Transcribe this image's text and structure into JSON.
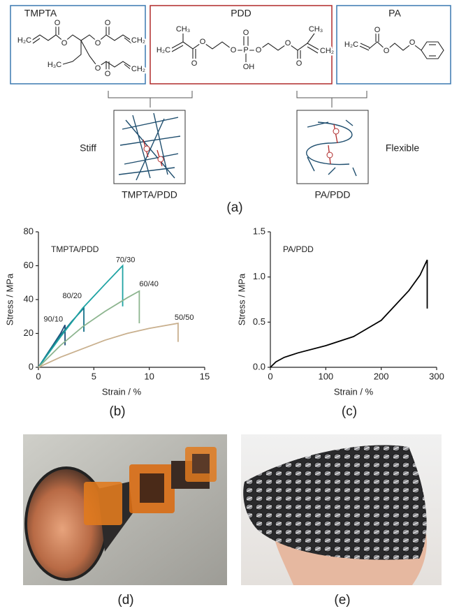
{
  "panel_a": {
    "monomers": [
      {
        "name": "TMPTA",
        "atoms": [
          "H₂C",
          "O",
          "O",
          "O",
          "O",
          "CH₂",
          "H₃C",
          "O",
          "O",
          "CH₂"
        ]
      },
      {
        "name": "PDD",
        "atoms": [
          "CH₃",
          "H₂C",
          "O",
          "O",
          "O",
          "P",
          "O",
          "OH",
          "O",
          "O",
          "O",
          "CH₃",
          "CH₂"
        ]
      },
      {
        "name": "PA",
        "atoms": [
          "H₂C",
          "O",
          "O",
          "O"
        ]
      }
    ],
    "networks": [
      {
        "name": "TMPTA/PDD",
        "property": "Stiff"
      },
      {
        "name": "PA/PDD",
        "property": "Flexible"
      }
    ],
    "label": "(a)"
  },
  "chart_data": [
    {
      "type": "line",
      "label": "(b)",
      "annotation": "TMPTA/PDD",
      "xlabel": "Strain / %",
      "ylabel": "Stress / MPa",
      "xlim": [
        0,
        15
      ],
      "xticks": [
        0,
        5,
        10,
        15
      ],
      "ylim": [
        0,
        80
      ],
      "yticks": [
        0,
        20,
        40,
        60,
        80
      ],
      "series": [
        {
          "name": "90/10",
          "color": "#1f4e79",
          "x": [
            0,
            1,
            2,
            2.4,
            2.4
          ],
          "values": [
            0,
            10,
            20,
            25,
            13
          ]
        },
        {
          "name": "80/20",
          "color": "#17728a",
          "x": [
            0,
            1,
            2,
            3,
            4.1,
            4.1
          ],
          "values": [
            0,
            10,
            19,
            27,
            35,
            21
          ]
        },
        {
          "name": "70/30",
          "color": "#1fa3a3",
          "x": [
            0,
            2,
            4,
            6,
            7.6,
            7.6
          ],
          "values": [
            0,
            18,
            35,
            49,
            60,
            36
          ]
        },
        {
          "name": "60/40",
          "color": "#8db58f",
          "x": [
            0,
            2,
            4,
            6,
            8,
            9.1,
            9.1
          ],
          "values": [
            0,
            13,
            24,
            33,
            41,
            45,
            26
          ]
        },
        {
          "name": "50/50",
          "color": "#c9b08e",
          "x": [
            0,
            2,
            4,
            6,
            8,
            10,
            12.6,
            12.6
          ],
          "values": [
            0,
            6,
            11,
            16,
            20,
            23,
            26,
            15
          ]
        }
      ]
    },
    {
      "type": "line",
      "label": "(c)",
      "annotation": "PA/PDD",
      "xlabel": "Strain / %",
      "ylabel": "Stress / MPa",
      "xlim": [
        0,
        300
      ],
      "xticks": [
        0,
        100,
        200,
        300
      ],
      "ylim": [
        0,
        1.5
      ],
      "yticks": [
        {
          "value": 0,
          "label": "0.0"
        },
        0.5,
        {
          "value": 1,
          "label": "1.0"
        },
        1.5
      ],
      "series": [
        {
          "color": "#000000",
          "x": [
            0,
            10,
            25,
            50,
            100,
            150,
            200,
            250,
            270,
            283,
            283
          ],
          "values": [
            0,
            0.06,
            0.11,
            0.16,
            0.24,
            0.34,
            0.52,
            0.85,
            1.02,
            1.19,
            0.65
          ]
        }
      ]
    }
  ],
  "photos": [
    {
      "label": "(d)"
    },
    {
      "label": "(e)"
    }
  ]
}
